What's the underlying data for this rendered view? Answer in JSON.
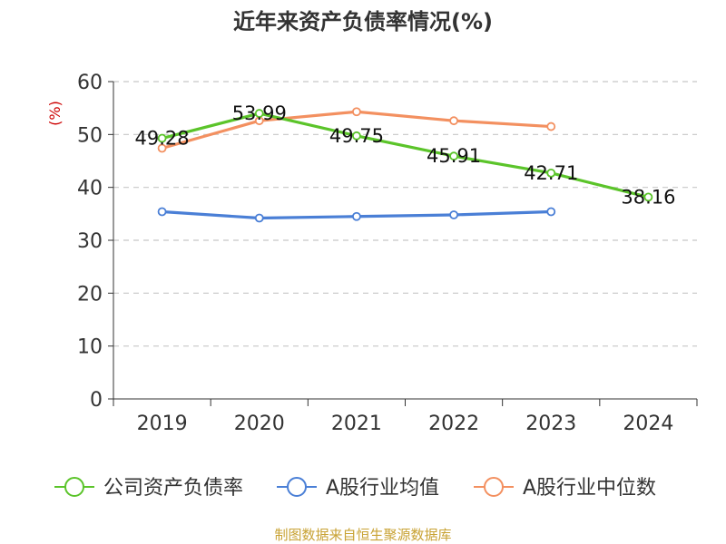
{
  "chart_data": {
    "type": "line",
    "title": "近年来资产负债率情况(%)",
    "ylabel": "(%)",
    "xlabel": "",
    "categories": [
      "2019",
      "2020",
      "2021",
      "2022",
      "2023",
      "2024"
    ],
    "ylim": [
      0,
      60
    ],
    "yticks": [
      0,
      10,
      20,
      30,
      40,
      50,
      60
    ],
    "grid": true,
    "legend_position": "bottom",
    "series": [
      {
        "name": "公司资产负债率",
        "color": "#5bc42a",
        "values": [
          49.28,
          53.99,
          49.75,
          45.91,
          42.71,
          38.16
        ],
        "labels": [
          "49.28",
          "53.99",
          "49.75",
          "45.91",
          "42.71",
          "38.16"
        ]
      },
      {
        "name": "A股行业均值",
        "color": "#4a7fd6",
        "values": [
          35.4,
          34.2,
          34.5,
          34.8,
          35.4,
          null
        ]
      },
      {
        "name": "A股行业中位数",
        "color": "#f39060",
        "values": [
          47.4,
          52.6,
          54.3,
          52.6,
          51.5,
          null
        ]
      }
    ]
  },
  "source": "制图数据来自恒生聚源数据库"
}
